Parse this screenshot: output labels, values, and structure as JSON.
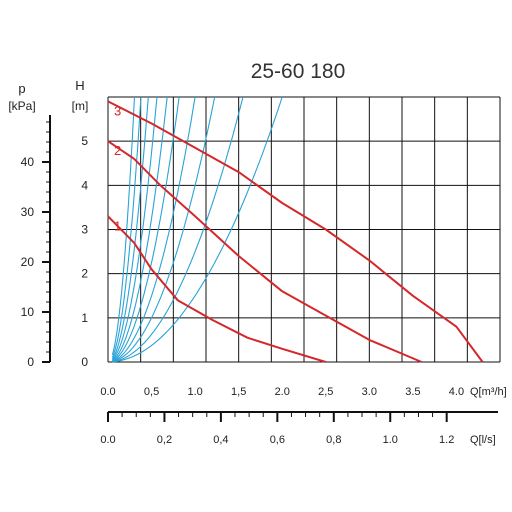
{
  "chart_data": {
    "type": "line",
    "title": "25-60 180",
    "axes": {
      "left_pressure": {
        "label": "p",
        "unit": "[kPa]",
        "ticks": [
          "0",
          "10",
          "20",
          "30",
          "40"
        ],
        "range": [
          0,
          53
        ]
      },
      "left_head": {
        "label": "H",
        "unit": "[m]",
        "ticks": [
          "0",
          "1",
          "2",
          "3",
          "4",
          "5"
        ],
        "range": [
          0,
          6
        ]
      },
      "bottom_flow_m3h": {
        "label": "Q[m³/h]",
        "ticks": [
          "0.0",
          "0,5",
          "1.0",
          "1,5",
          "2.0",
          "2,5",
          "3.0",
          "3.5",
          "4.0"
        ],
        "range": [
          0,
          4.5
        ]
      },
      "bottom_flow_ls": {
        "label": "Q[l/s]",
        "ticks": [
          "0.0",
          "0,2",
          "0,4",
          "0,6",
          "0,8",
          "1.0",
          "1.2"
        ],
        "range": [
          0,
          1.25
        ]
      }
    },
    "grid": true,
    "pump_curves": [
      {
        "name": "1",
        "x": [
          0.0,
          0.3,
          0.5,
          0.8,
          1.2,
          1.6,
          2.0,
          2.5
        ],
        "y": [
          3.3,
          2.7,
          2.1,
          1.4,
          0.95,
          0.55,
          0.3,
          0.0
        ]
      },
      {
        "name": "2",
        "x": [
          0.0,
          0.3,
          0.6,
          1.0,
          1.5,
          2.0,
          2.5,
          3.0,
          3.6
        ],
        "y": [
          5.0,
          4.6,
          4.0,
          3.3,
          2.4,
          1.6,
          1.05,
          0.5,
          0.0
        ]
      },
      {
        "name": "3",
        "x": [
          0.0,
          0.5,
          1.0,
          1.5,
          2.0,
          2.5,
          3.0,
          3.5,
          4.0,
          4.3
        ],
        "y": [
          5.9,
          5.4,
          4.85,
          4.3,
          3.6,
          3.0,
          2.3,
          1.5,
          0.8,
          0.0
        ]
      }
    ],
    "system_curves_k": [
      1.5,
      2.5,
      4.0,
      6.0,
      9.0,
      13.0,
      19.0,
      28.0,
      42.0,
      65.0
    ],
    "colors": {
      "pump": "#d4282b",
      "system": "#2aa3d6",
      "grid": "#111111"
    }
  }
}
